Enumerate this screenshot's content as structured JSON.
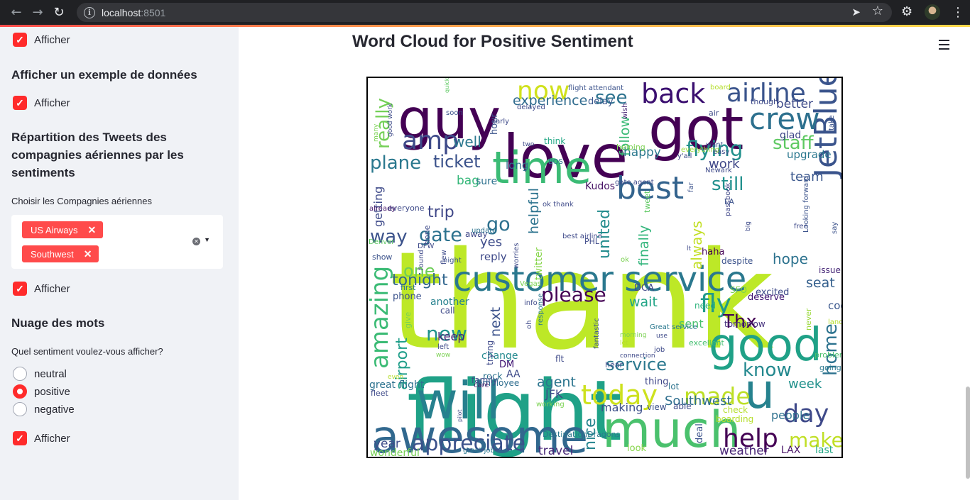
{
  "browser": {
    "url_host": "localhost",
    "url_port": ":8501"
  },
  "sidebar": {
    "checkbox_label": "Afficher",
    "section_sample": "Afficher un exemple de données",
    "section_distribution": "Répartition des Tweets des compagnies aériennes par les sentiments",
    "airlines_label": "Choisir les Compagnies aériennes",
    "selected_airlines": [
      "US Airways",
      "Southwest"
    ],
    "section_wordcloud": "Nuage des mots",
    "sentiment_question": "Quel sentiment voulez-vous afficher?",
    "sentiments": [
      "neutral",
      "positive",
      "negative"
    ],
    "selected_sentiment": "positive"
  },
  "main": {
    "title": "Word Cloud for Positive Sentiment"
  },
  "wordcloud": {
    "words": [
      [
        "thank",
        "#bde827"
      ],
      [
        "flight",
        "#1fa187"
      ],
      [
        "great",
        "#a0da39"
      ],
      [
        "love",
        "#440154"
      ],
      [
        "guy",
        "#440154"
      ],
      [
        "got",
        "#440154"
      ],
      [
        "will",
        "#27808e"
      ],
      [
        "awesome",
        "#31688e"
      ],
      [
        "much",
        "#4ac16d"
      ],
      [
        "good",
        "#1fa187"
      ],
      [
        "customer service",
        "#2a788e"
      ],
      [
        "time",
        "#3bbb75"
      ],
      [
        "best",
        "#33638d"
      ],
      [
        "JetBlue",
        "#3a548c"
      ],
      [
        "u",
        "#26828e"
      ],
      [
        "back",
        "#3b0f70"
      ],
      [
        "airline",
        "#3a548c"
      ],
      [
        "crew",
        "#2d708e"
      ],
      [
        "amp",
        "#3e4a89"
      ],
      [
        "now",
        "#d0e11c"
      ],
      [
        "see",
        "#2c728e"
      ],
      [
        "flying",
        "#21918c"
      ],
      [
        "staff",
        "#5ec962"
      ],
      [
        "plane",
        "#2a788e"
      ],
      [
        "ticket",
        "#3b528b"
      ],
      [
        "today",
        "#cde11d"
      ],
      [
        "help",
        "#440154"
      ],
      [
        "day",
        "#3e4989"
      ],
      [
        "made",
        "#bddf26"
      ],
      [
        "appreciate",
        "#3b528b"
      ],
      [
        "make",
        "#c0df25"
      ],
      [
        "amazing",
        "#3bbb75"
      ],
      [
        "fly",
        "#1f9a8a"
      ],
      [
        "please",
        "#440154"
      ],
      [
        "new",
        "#20928c"
      ],
      [
        "gate",
        "#2c728e"
      ],
      [
        "way",
        "#3b528b"
      ],
      [
        "know",
        "#23888e"
      ],
      [
        "home",
        "#2c728e"
      ],
      [
        "Thx",
        "#440154"
      ],
      [
        "nice",
        "#25848e"
      ],
      [
        "united",
        "#228c8d"
      ],
      [
        "airport",
        "#1f9e89"
      ],
      [
        "hope",
        "#2c728e"
      ],
      [
        "seat",
        "#35608d"
      ],
      [
        "one",
        "#6ece58"
      ],
      [
        "tonight",
        "#31668e"
      ],
      [
        "go",
        "#2d708e"
      ],
      [
        "trip",
        "#3f4788"
      ],
      [
        "really",
        "#73d056"
      ],
      [
        "experience",
        "#2f6b8e"
      ],
      [
        "still",
        "#21908d"
      ],
      [
        "well",
        "#2a778e"
      ],
      [
        "team",
        "#39568c"
      ],
      [
        "agent",
        "#2b748e"
      ],
      [
        "year",
        "#3e4c8a"
      ],
      [
        "wonderful",
        "#75d054"
      ],
      [
        "travel",
        "#482878"
      ],
      [
        "weather",
        "#482475"
      ],
      [
        "Southwest",
        "#2e6e8e"
      ],
      [
        "week",
        "#21918c"
      ],
      [
        "wait",
        "#20a486"
      ],
      [
        "sent",
        "#48c16e"
      ],
      [
        "next",
        "#3b528b"
      ],
      [
        "keep",
        "#482475"
      ],
      [
        "service",
        "#2a788e"
      ],
      [
        "getting",
        "#3e4a89"
      ],
      [
        "follow",
        "#3aba76"
      ],
      [
        "happy",
        "#2a788e"
      ],
      [
        "bag",
        "#35b779"
      ],
      [
        "long",
        "#2c728e"
      ],
      [
        "work",
        "#3f4788"
      ],
      [
        "always",
        "#c2df23"
      ],
      [
        "finally",
        "#31b57b"
      ],
      [
        "helpful",
        "#2c738e"
      ],
      [
        "yes",
        "#3e4c8a"
      ],
      [
        "reply",
        "#3e4989"
      ],
      [
        "making",
        "#3c4f8a"
      ],
      [
        "JFK",
        "#3e4a89"
      ],
      [
        "people",
        "#2d708e"
      ],
      [
        "tomorrow",
        "#46327e"
      ],
      [
        "cool",
        "#39568c"
      ],
      [
        "LAX",
        "#481467"
      ],
      [
        "last",
        "#22a785"
      ],
      [
        "upgrade",
        "#2a778e"
      ],
      [
        "glad",
        "#3f4788"
      ],
      [
        "better",
        "#3e4a89"
      ],
      [
        "delay",
        "#39568c"
      ],
      [
        "hour",
        "#3a538b"
      ],
      [
        "sure",
        "#2c718e"
      ],
      [
        "Kudos",
        "#471365"
      ],
      [
        "phone",
        "#3b528b"
      ],
      [
        "first",
        "#2d708e"
      ],
      [
        "another",
        "#26818e"
      ],
      [
        "call",
        "#3e4989"
      ],
      [
        "change",
        "#23898e"
      ],
      [
        "DM",
        "#3b0f70"
      ],
      [
        "AA",
        "#3e4a89"
      ],
      [
        "trying",
        "#3e4989"
      ],
      [
        "rock",
        "#2c728e"
      ],
      [
        "employee",
        "#2e6d8e"
      ],
      [
        "great flight",
        "#2c728e"
      ],
      [
        "fleet",
        "#3e4a89"
      ],
      [
        "DCA",
        "#3f4788"
      ],
      [
        "SFO",
        "#7ad151"
      ],
      [
        "deserve",
        "#3b0f70"
      ],
      [
        "need",
        "#2eb37c"
      ],
      [
        "excellent",
        "#44bf70"
      ],
      [
        "issue",
        "#482979"
      ],
      [
        "excited",
        "#3e4a89"
      ],
      [
        "going",
        "#2a788e"
      ],
      [
        "problem",
        "#4ac16d"
      ],
      [
        "never",
        "#9bd93c"
      ],
      [
        "despite",
        "#3b528b"
      ],
      [
        "haha",
        "#440154"
      ],
      [
        "thing",
        "#3f4788"
      ],
      [
        "lot",
        "#2c738e"
      ],
      [
        "view",
        "#3b528b"
      ],
      [
        "able",
        "#3e4a89"
      ],
      [
        "check",
        "#b5de2b"
      ],
      [
        "boarding",
        "#b5de2b"
      ],
      [
        "deal",
        "#3b528b"
      ],
      [
        "look",
        "#86d549"
      ],
      [
        "great job",
        "#2a788e"
      ],
      [
        "DestinationDragons",
        "#2a788e"
      ],
      [
        "working",
        "#7ad151"
      ],
      [
        "family",
        "#3e4989"
      ],
      [
        "care",
        "#481668"
      ],
      [
        "done",
        "#3e4a89"
      ],
      [
        "away",
        "#3f4788"
      ],
      [
        "show",
        "#3b528b"
      ],
      [
        "DFW",
        "#3e4a89"
      ],
      [
        "update",
        "#2c728e"
      ],
      [
        "everyone",
        "#3e4a89"
      ],
      [
        "already",
        "#481a6c"
      ],
      [
        "found",
        "#3e4989"
      ],
      [
        "night",
        "#3b528b"
      ],
      [
        "flew",
        "#3e4a89"
      ],
      [
        "Denver",
        "#5ec962"
      ],
      [
        "helping",
        "#7ad151"
      ],
      [
        "think",
        "#22a785"
      ],
      [
        "wish",
        "#482475"
      ],
      [
        "everything",
        "#9bd93c"
      ],
      [
        "y'all",
        "#3e4989"
      ],
      [
        "easy",
        "#3e4a89"
      ],
      [
        "Newark",
        "#3e4a89"
      ],
      [
        "want",
        "#3b528b"
      ],
      [
        "far",
        "#3b528b"
      ],
      [
        "LA",
        "#3b528b"
      ],
      [
        "passbook",
        "#3f4788"
      ],
      [
        "free",
        "#3e4989"
      ],
      [
        "big",
        "#3e4a89"
      ],
      [
        "say",
        "#3b528b"
      ],
      [
        "Looking forward",
        "#3b528b"
      ],
      [
        "flight attendant",
        "#3b528b"
      ],
      [
        "though",
        "#3e4a89"
      ],
      [
        "air",
        "#3e4a89"
      ],
      [
        "take",
        "#3b528b"
      ],
      [
        "delayed",
        "#3e4989"
      ],
      [
        "soon",
        "#3b528b"
      ],
      [
        "early",
        "#3e4a89"
      ],
      [
        "two",
        "#3e4a89"
      ],
      [
        "many",
        "#7ad151"
      ],
      [
        "good work",
        "#3e4a89"
      ],
      [
        "quick response",
        "#5ec962"
      ],
      [
        "board",
        "#b5de2b"
      ],
      [
        "BOS",
        "#2c728e"
      ],
      [
        "gate agent",
        "#3e4989"
      ],
      [
        "ok thank",
        "#3e4a89"
      ],
      [
        "tweet",
        "#5ec962"
      ],
      [
        "best airline",
        "#3e4989"
      ],
      [
        "PHL",
        "#3e4a89"
      ],
      [
        "ok",
        "#7ad151"
      ],
      [
        "Vegas",
        "#7ad151"
      ],
      [
        "info",
        "#3e4a89"
      ],
      [
        "worries",
        "#3e4a89"
      ],
      [
        "oh",
        "#3e4989"
      ],
      [
        "flt",
        "#3e4a89"
      ],
      [
        "twitter",
        "#86d549"
      ],
      [
        "response",
        "#2a788e"
      ],
      [
        "fantastic",
        "#3b528b"
      ],
      [
        "morning",
        "#7ad151"
      ],
      [
        "let",
        "#b5de2b"
      ],
      [
        "connection",
        "#3e4989"
      ],
      [
        "Great service",
        "#2a788e"
      ],
      [
        "job",
        "#3e4a89"
      ],
      [
        "use",
        "#3e4a89"
      ],
      [
        "hear",
        "#3e4a89"
      ],
      [
        "give",
        "#7ad151"
      ],
      [
        "left",
        "#3e4989"
      ],
      [
        "wow",
        "#7ad151"
      ],
      [
        "even",
        "#b5de2b"
      ],
      [
        "pilot",
        "#3e4a89"
      ],
      [
        "landing",
        "#b5de2b"
      ],
      [
        "SWA",
        "#3e4a89"
      ],
      [
        "lt",
        "#3e4a89"
      ],
      [
        "world",
        "#3b528b"
      ],
      [
        "right",
        "#3e4a89"
      ],
      [
        "luv",
        "#b5de2b"
      ],
      [
        "w",
        "#3e4a89"
      ]
    ]
  }
}
